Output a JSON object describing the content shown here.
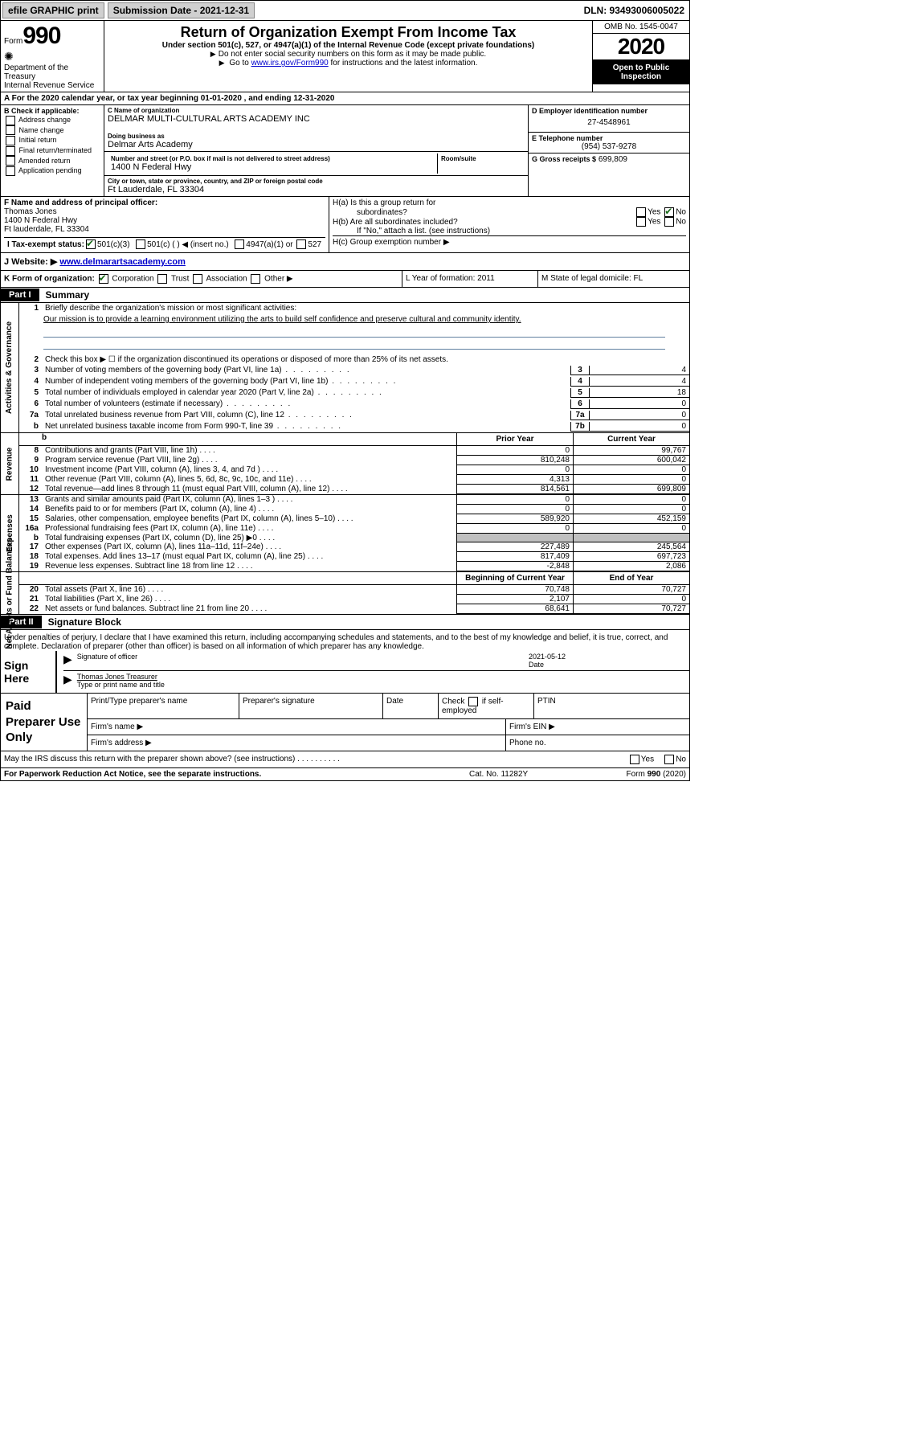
{
  "topbar": {
    "efile": "efile GRAPHIC print",
    "submission": "Submission Date - 2021-12-31",
    "dln": "DLN: 93493006005022"
  },
  "header": {
    "form_prefix": "Form",
    "form_number": "990",
    "dept": "Department of the Treasury",
    "irs": "Internal Revenue Service",
    "title": "Return of Organization Exempt From Income Tax",
    "subtitle": "Under section 501(c), 527, or 4947(a)(1) of the Internal Revenue Code (except private foundations)",
    "note1": "Do not enter social security numbers on this form as it may be made public.",
    "note2_pre": "Go to ",
    "note2_link": "www.irs.gov/Form990",
    "note2_post": " for instructions and the latest information.",
    "omb": "OMB No. 1545-0047",
    "year": "2020",
    "open": "Open to Public Inspection"
  },
  "row_a": "A For the 2020 calendar year, or tax year beginning 01-01-2020    , and ending 12-31-2020",
  "col_b": {
    "label": "B Check if applicable:",
    "opts": [
      "Address change",
      "Name change",
      "Initial return",
      "Final return/terminated",
      "Amended return",
      "Application pending"
    ]
  },
  "col_c": {
    "name_label": "C Name of organization",
    "name": "DELMAR MULTI-CULTURAL ARTS ACADEMY INC",
    "dba_label": "Doing business as",
    "dba": "Delmar Arts Academy",
    "street_label": "Number and street (or P.O. box if mail is not delivered to street address)",
    "room_label": "Room/suite",
    "street": "1400 N Federal Hwy",
    "city_label": "City or town, state or province, country, and ZIP or foreign postal code",
    "city": "Ft Lauderdale, FL  33304"
  },
  "col_de": {
    "d_label": "D Employer identification number",
    "ein": "27-4548961",
    "e_label": "E Telephone number",
    "phone": "(954) 537-9278",
    "g_label": "G Gross receipts $",
    "gross": "699,809"
  },
  "row_f": {
    "label": "F  Name and address of principal officer:",
    "name": "Thomas Jones",
    "addr1": "1400 N Federal Hwy",
    "addr2": "Ft lauderdale, FL  33304"
  },
  "row_h": {
    "ha": "H(a)  Is this a group return for",
    "ha2": "subordinates?",
    "hb": "H(b)  Are all subordinates included?",
    "hnote": "If \"No,\" attach a list. (see instructions)",
    "hc": "H(c)  Group exemption number ▶",
    "yes": "Yes",
    "no": "No"
  },
  "row_i": {
    "label": "I  Tax-exempt status:",
    "o1": "501(c)(3)",
    "o2": "501(c) (  ) ◀ (insert no.)",
    "o3": "4947(a)(1) or",
    "o4": "527"
  },
  "row_j": {
    "label": "J  Website: ▶  ",
    "url": "www.delmarartsacademy.com"
  },
  "row_k": {
    "label": "K Form of organization:",
    "o1": "Corporation",
    "o2": "Trust",
    "o3": "Association",
    "o4": "Other ▶"
  },
  "row_l": "L Year of formation: 2011",
  "row_m": "M State of legal domicile: FL",
  "parts": {
    "p1_tab": "Part I",
    "p1_title": "Summary",
    "p2_tab": "Part II",
    "p2_title": "Signature Block"
  },
  "vert_labels": {
    "gov": "Activities & Governance",
    "rev": "Revenue",
    "exp": "Expenses",
    "net": "Net Assets or Fund Balances"
  },
  "summary": {
    "l1": "Briefly describe the organization's mission or most significant activities:",
    "mission": "Our mission is to provide a learning environment utilizing the arts to build self confidence and preserve cultural and community identity.",
    "l2": "Check this box ▶ ☐  if the organization discontinued its operations or disposed of more than 25% of its net assets.",
    "l3": "Number of voting members of the governing body (Part VI, line 1a)",
    "l3v": "4",
    "l4": "Number of independent voting members of the governing body (Part VI, line 1b)",
    "l4v": "4",
    "l5": "Total number of individuals employed in calendar year 2020 (Part V, line 2a)",
    "l5v": "18",
    "l6": "Total number of volunteers (estimate if necessary)",
    "l6v": "0",
    "l7a": "Total unrelated business revenue from Part VIII, column (C), line 12",
    "l7av": "0",
    "l7b": "Net unrelated business taxable income from Form 990-T, line 39",
    "l7bv": "0"
  },
  "twocol_hdr": {
    "blank": "b",
    "prior": "Prior Year",
    "curr": "Current Year"
  },
  "revenue": [
    {
      "n": "8",
      "t": "Contributions and grants (Part VIII, line 1h)",
      "p": "0",
      "c": "99,767"
    },
    {
      "n": "9",
      "t": "Program service revenue (Part VIII, line 2g)",
      "p": "810,248",
      "c": "600,042"
    },
    {
      "n": "10",
      "t": "Investment income (Part VIII, column (A), lines 3, 4, and 7d )",
      "p": "0",
      "c": "0"
    },
    {
      "n": "11",
      "t": "Other revenue (Part VIII, column (A), lines 5, 6d, 8c, 9c, 10c, and 11e)",
      "p": "4,313",
      "c": "0"
    },
    {
      "n": "12",
      "t": "Total revenue—add lines 8 through 11 (must equal Part VIII, column (A), line 12)",
      "p": "814,561",
      "c": "699,809"
    }
  ],
  "expenses": [
    {
      "n": "13",
      "t": "Grants and similar amounts paid (Part IX, column (A), lines 1–3 )",
      "p": "0",
      "c": "0"
    },
    {
      "n": "14",
      "t": "Benefits paid to or for members (Part IX, column (A), line 4)",
      "p": "0",
      "c": "0"
    },
    {
      "n": "15",
      "t": "Salaries, other compensation, employee benefits (Part IX, column (A), lines 5–10)",
      "p": "589,920",
      "c": "452,159"
    },
    {
      "n": "16a",
      "t": "Professional fundraising fees (Part IX, column (A), line 11e)",
      "p": "0",
      "c": "0"
    },
    {
      "n": "b",
      "t": "Total fundraising expenses (Part IX, column (D), line 25) ▶0",
      "p": "shaded",
      "c": "shaded"
    },
    {
      "n": "17",
      "t": "Other expenses (Part IX, column (A), lines 11a–11d, 11f–24e)",
      "p": "227,489",
      "c": "245,564"
    },
    {
      "n": "18",
      "t": "Total expenses. Add lines 13–17 (must equal Part IX, column (A), line 25)",
      "p": "817,409",
      "c": "697,723"
    },
    {
      "n": "19",
      "t": "Revenue less expenses. Subtract line 18 from line 12",
      "p": "-2,848",
      "c": "2,086"
    }
  ],
  "netassets_hdr": {
    "prior": "Beginning of Current Year",
    "curr": "End of Year"
  },
  "netassets": [
    {
      "n": "20",
      "t": "Total assets (Part X, line 16)",
      "p": "70,748",
      "c": "70,727"
    },
    {
      "n": "21",
      "t": "Total liabilities (Part X, line 26)",
      "p": "2,107",
      "c": "0"
    },
    {
      "n": "22",
      "t": "Net assets or fund balances. Subtract line 21 from line 20",
      "p": "68,641",
      "c": "70,727"
    }
  ],
  "sig_block": {
    "perjury": "Under penalties of perjury, I declare that I have examined this return, including accompanying schedules and statements, and to the best of my knowledge and belief, it is true, correct, and complete. Declaration of preparer (other than officer) is based on all information of which preparer has any knowledge.",
    "sign_here": "Sign Here",
    "sig_officer": "Signature of officer",
    "sig_date": "2021-05-12",
    "date_label": "Date",
    "officer_name": "Thomas Jones  Treasurer",
    "type_print": "Type or print name and title"
  },
  "paid": {
    "label": "Paid Preparer Use Only",
    "r1": {
      "c1": "Print/Type preparer's name",
      "c2": "Preparer's signature",
      "c3": "Date",
      "c4pre": "Check",
      "c4post": "if self-employed",
      "c5": "PTIN"
    },
    "r2": {
      "c1": "Firm's name   ▶",
      "c2": "Firm's EIN ▶"
    },
    "r3": {
      "c1": "Firm's address ▶",
      "c2": "Phone no."
    }
  },
  "discuss": {
    "text": "May the IRS discuss this return with the preparer shown above? (see instructions)",
    "yes": "Yes",
    "no": "No"
  },
  "footer": {
    "left": "For Paperwork Reduction Act Notice, see the separate instructions.",
    "mid": "Cat. No. 11282Y",
    "right_pre": "Form ",
    "right_bold": "990",
    "right_post": " (2020)"
  }
}
